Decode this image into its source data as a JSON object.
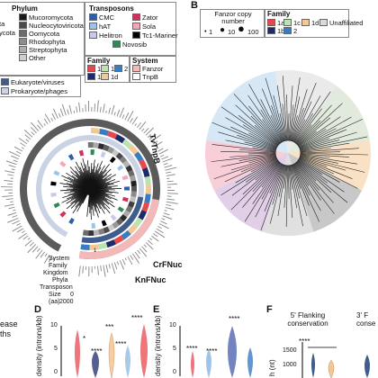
{
  "panel_a": {
    "phylum": {
      "title": "Phylum",
      "items": [
        {
          "label": "Mucoromycota",
          "color": "#1a1a1a"
        },
        {
          "label": "Nucleocytoviricota",
          "color": "#4a4a4a"
        },
        {
          "label": "Oomycota",
          "color": "#6b6b6b"
        },
        {
          "label": "Rhodophyta",
          "color": "#8c8c8c"
        },
        {
          "label": "Streptophyta",
          "color": "#adadad"
        },
        {
          "label": "Other",
          "color": "#cfcfcf"
        }
      ],
      "cut_labels": [
        "ta",
        "ycota"
      ]
    },
    "transposons": {
      "title": "Transposons",
      "items": [
        {
          "label": "CMC",
          "color": "#2e5fa8"
        },
        {
          "label": "hAT",
          "color": "#9fc3e6"
        },
        {
          "label": "Helitron",
          "color": "#c9c9e8"
        },
        {
          "label": "Zator",
          "color": "#d1305c"
        },
        {
          "label": "Sola",
          "color": "#f2a7b9"
        },
        {
          "label": "Tc1-Mariner",
          "color": "#000000"
        },
        {
          "label": "Novosib",
          "color": "#2e8b57"
        }
      ]
    },
    "family": {
      "title": "Family",
      "items": [
        {
          "label": "1a",
          "color": "#e8474c"
        },
        {
          "label": "1b",
          "color": "#1f2a6b"
        },
        {
          "label": "1c",
          "color": "#b9e3b0"
        },
        {
          "label": "1d",
          "color": "#f4c896"
        },
        {
          "label": "2",
          "color": "#3a7cc2"
        }
      ]
    },
    "system": {
      "title": "System",
      "items": [
        {
          "label": "Fanzor",
          "color": "#f3b8b8"
        },
        {
          "label": "TnpB",
          "color": "#ffffff"
        }
      ]
    },
    "kingdom": {
      "items": [
        {
          "label": "Eukaryote/viruses",
          "color": "#3f5d8c"
        },
        {
          "label": "Prokaryote/phages",
          "color": "#c9d3e3"
        }
      ]
    },
    "tree_labels": {
      "tvtnpb": "TvTnpB",
      "crfnuc": "CrFNuc",
      "knfnuc": "KnFNuc"
    },
    "ring_labels": [
      "System",
      "Family",
      "Kingdom",
      "Phyla",
      "Transposon",
      "Size (aa)"
    ],
    "size_ticks": [
      "0",
      "2000"
    ],
    "scale_label": "1"
  },
  "panel_b": {
    "letter": "B",
    "fanzor_copy": {
      "title": "Fanzor copy number",
      "sizes": [
        "1",
        "10",
        "100"
      ]
    },
    "family": {
      "title": "Family",
      "items": [
        {
          "label": "1a",
          "color": "#e8474c"
        },
        {
          "label": "1b",
          "color": "#1f2a6b"
        },
        {
          "label": "1c",
          "color": "#b9e3b0"
        },
        {
          "label": "1d",
          "color": "#f4c896"
        },
        {
          "label": "2",
          "color": "#3a7cc2"
        },
        {
          "label": "Unaffiliated",
          "color": "#d9d9d9"
        }
      ]
    }
  },
  "panel_c": {
    "lines": [
      "ease",
      "ths"
    ]
  },
  "panel_d": {
    "letter": "D",
    "ylabel": "density (introns/kb)",
    "ticks": [
      "10",
      "5",
      "0"
    ],
    "stars": [
      "*",
      "****",
      "***",
      "****",
      "****"
    ]
  },
  "panel_e": {
    "letter": "E",
    "ylabel": "density (introns/kb)",
    "ticks": [
      "10",
      "5",
      "0"
    ],
    "stars": [
      "****",
      "****",
      "****"
    ]
  },
  "panel_f": {
    "letter": "F",
    "titles": [
      "5' Flanking conservation",
      "3' F conse"
    ],
    "ylabel": "h (nt)",
    "ticks": [
      "1500",
      "1000"
    ],
    "stars": [
      "****"
    ]
  }
}
